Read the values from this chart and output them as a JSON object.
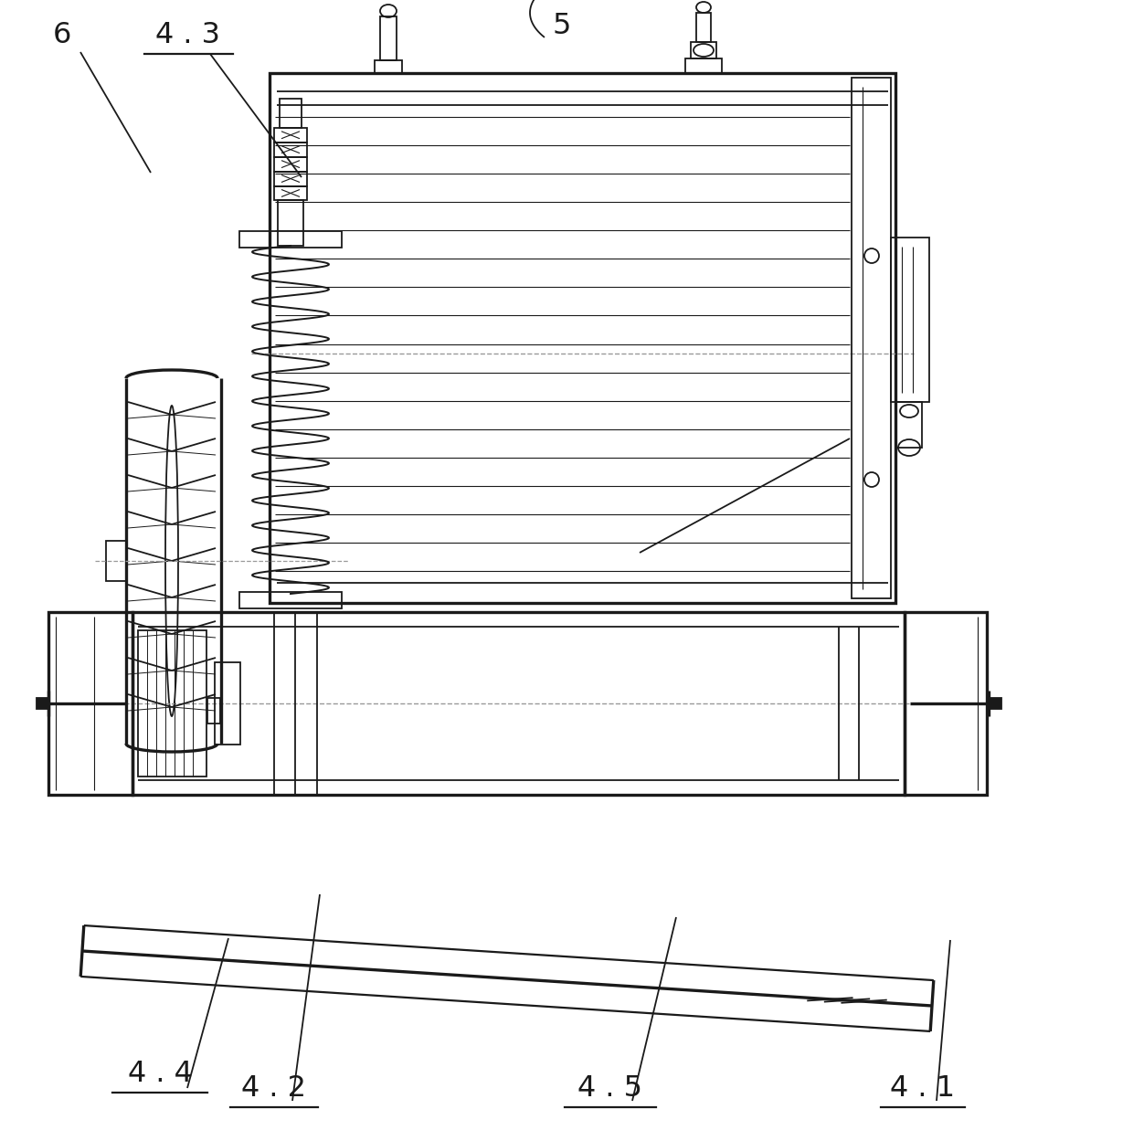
{
  "bg_color": "#ffffff",
  "lc": "#1a1a1a",
  "lw": 1.3,
  "tlw": 2.4,
  "dc": "#999999",
  "fs": 23
}
